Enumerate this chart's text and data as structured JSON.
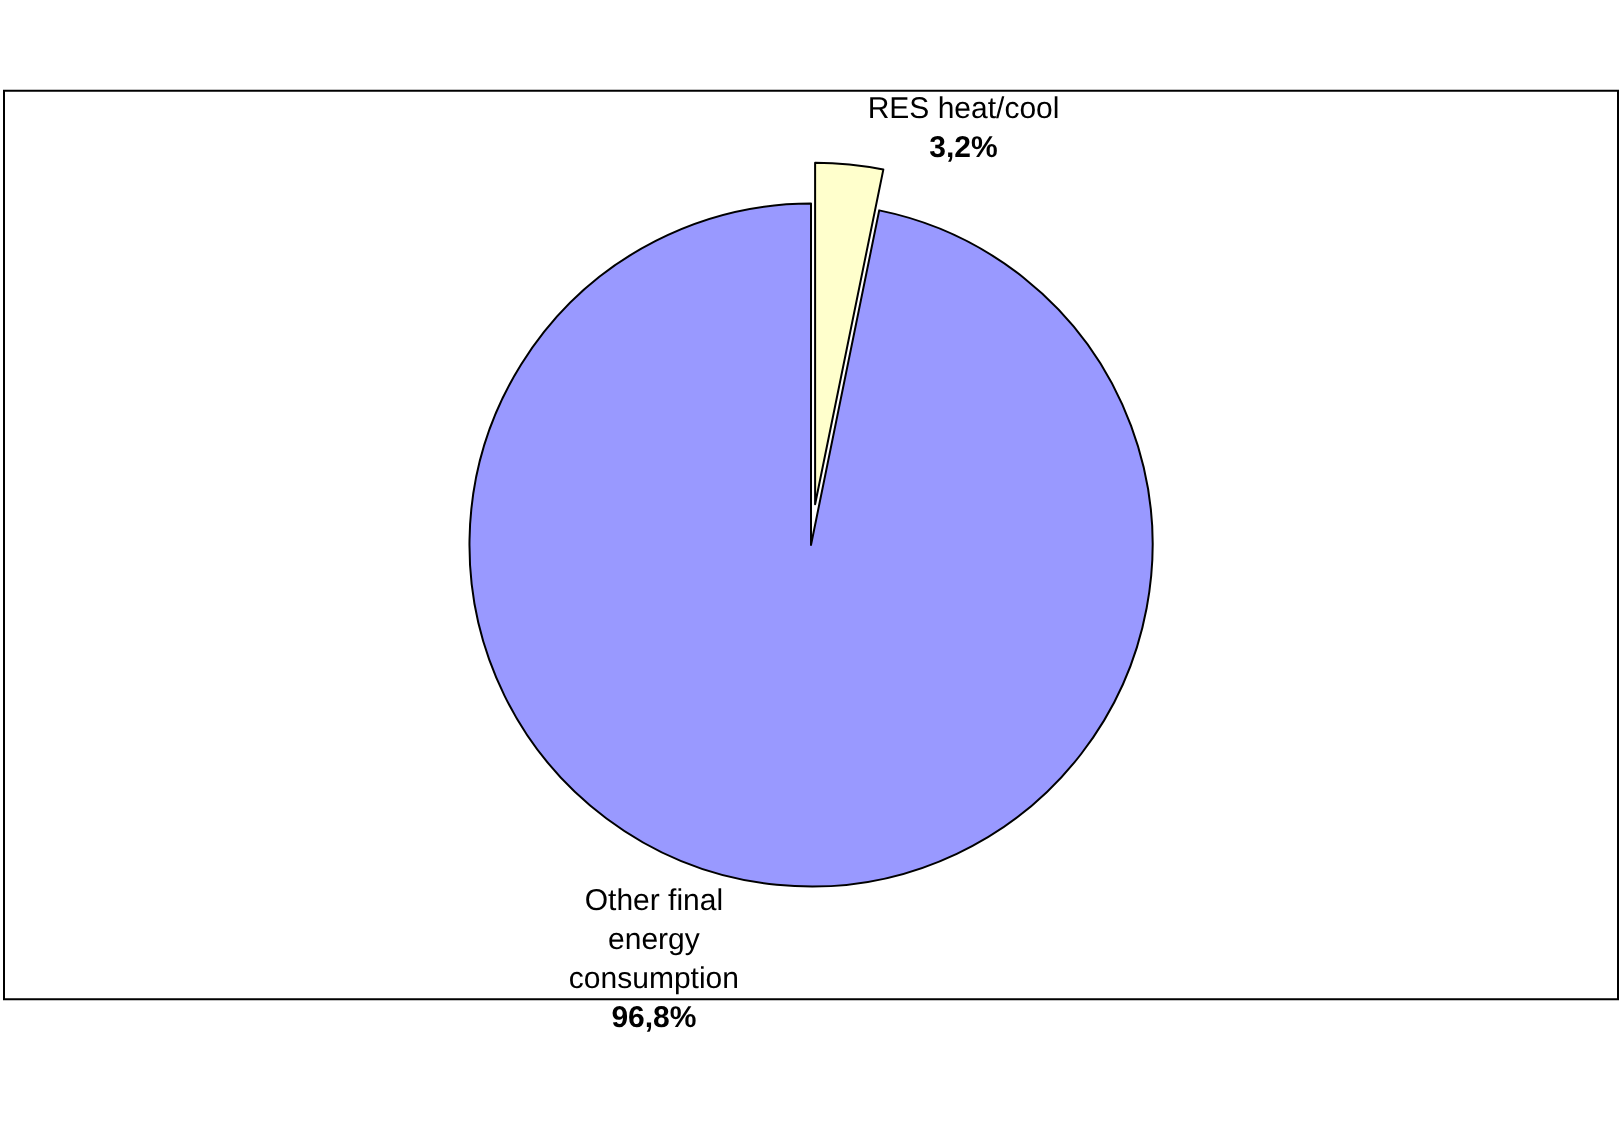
{
  "chart_data": {
    "type": "pie",
    "categories": [
      "RES heat/cool",
      "Other final energy consumption"
    ],
    "values": [
      3.2,
      96.8
    ],
    "value_labels": [
      "3,2%",
      "96,8%"
    ],
    "colors": [
      "#ffffcc",
      "#9999ff"
    ],
    "legend": false
  }
}
